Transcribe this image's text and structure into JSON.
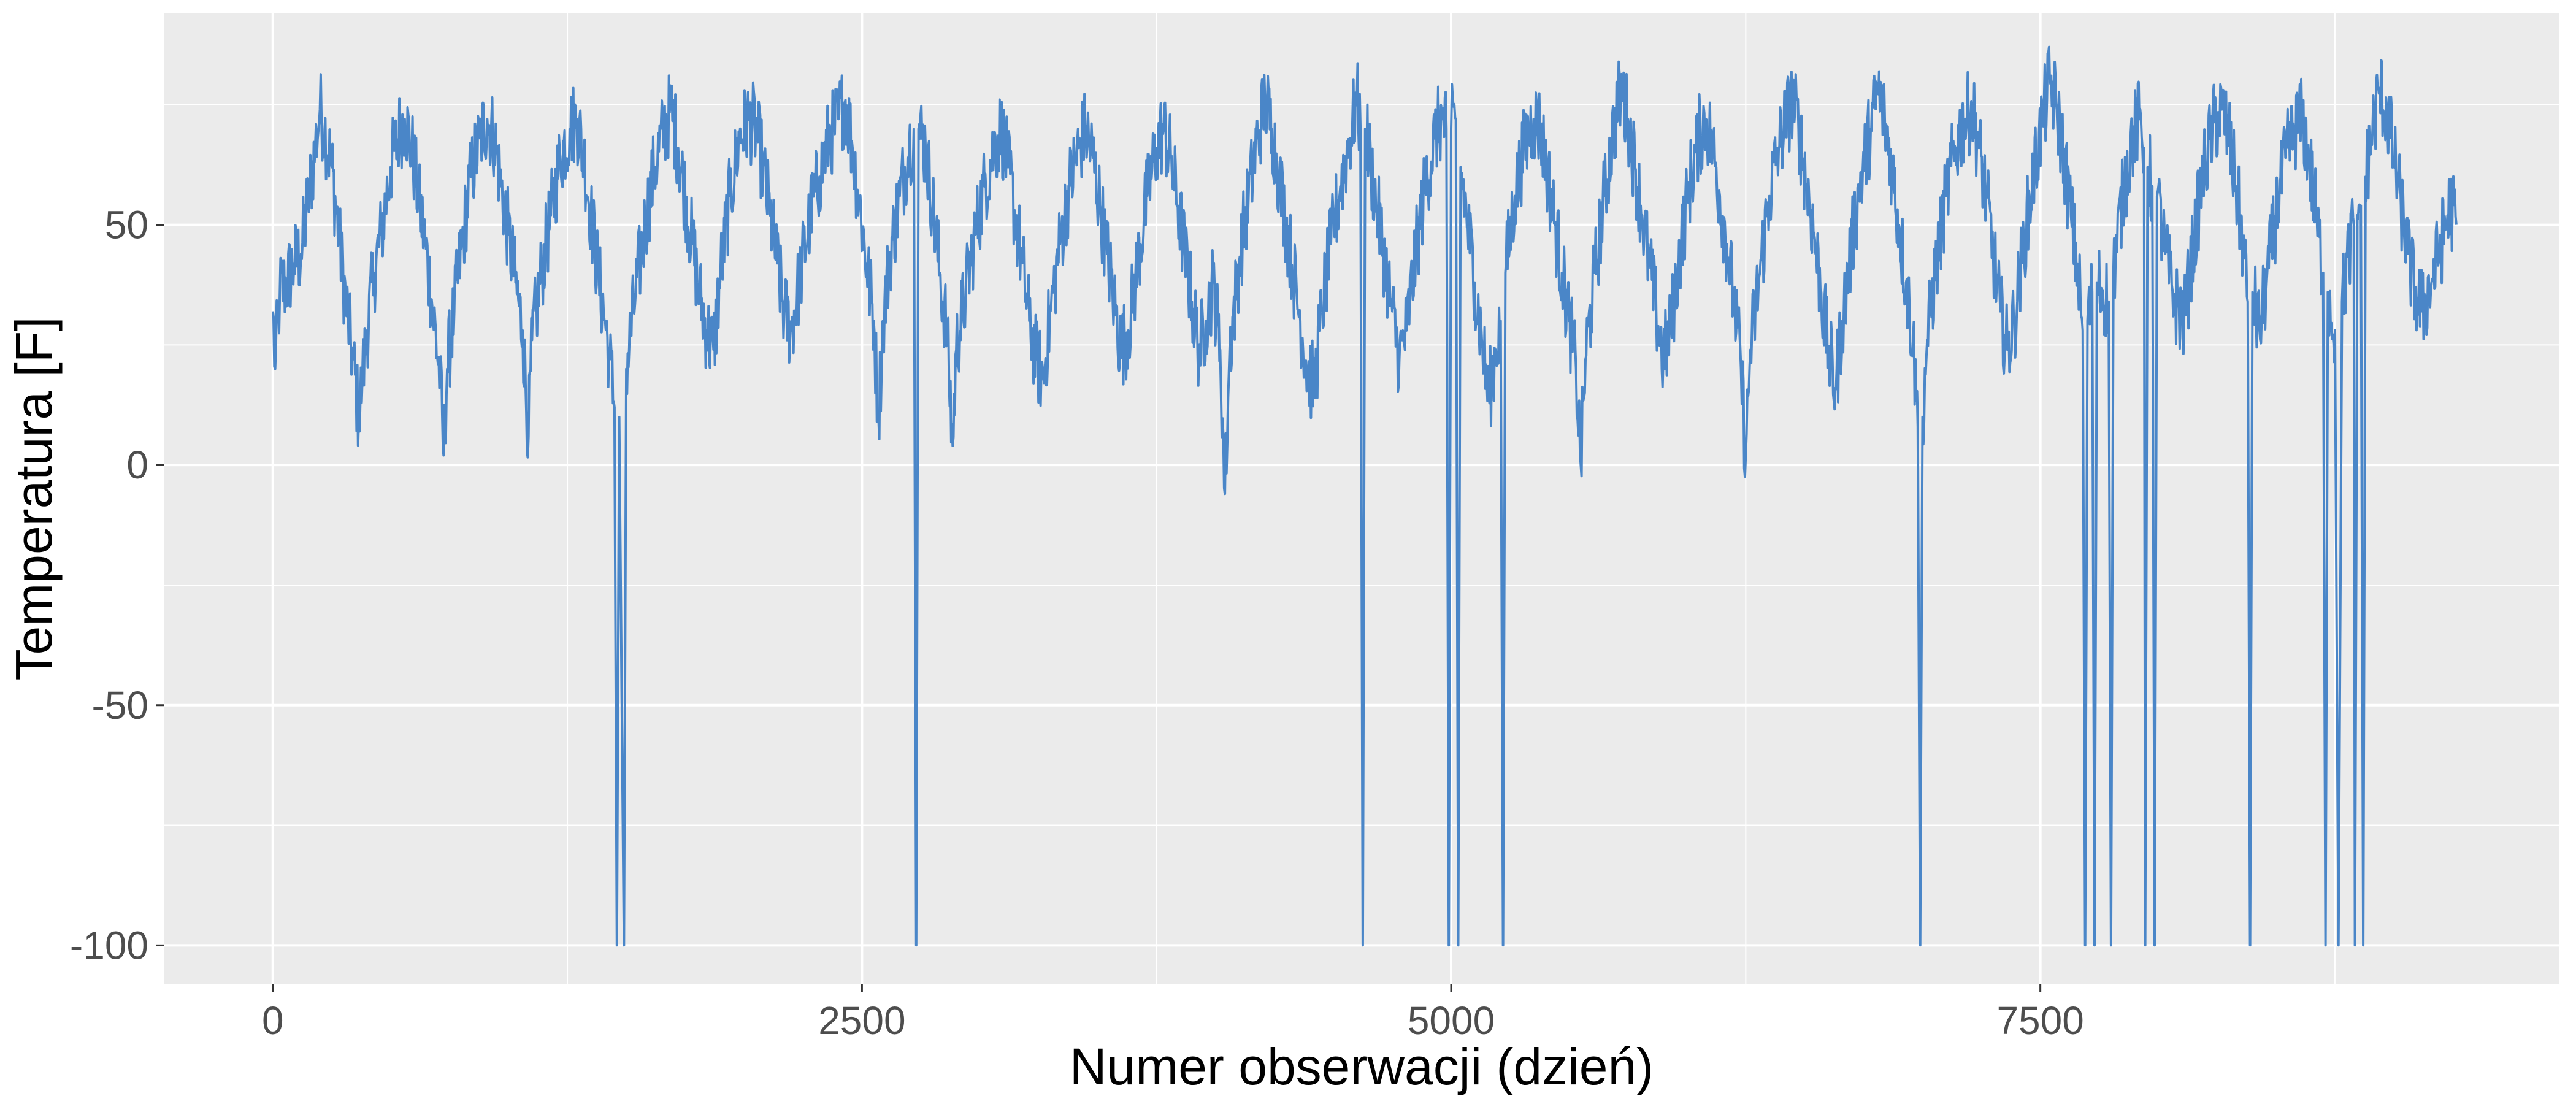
{
  "chart_data": {
    "type": "line",
    "title": "",
    "xlabel": "Numer obserwacji (dzień)",
    "ylabel": "Temperatura [F]",
    "xlim": [
      -460,
      9700
    ],
    "ylim": [
      -108,
      94
    ],
    "x_ticks": [
      0,
      2500,
      5000,
      7500
    ],
    "x_tick_labels": [
      "0",
      "2500",
      "5000",
      "7500"
    ],
    "x_minor_ticks": [
      1250,
      3750,
      6250,
      8750
    ],
    "y_ticks": [
      -100,
      -50,
      0,
      50
    ],
    "y_tick_labels": [
      "-100",
      "-50",
      "0",
      "50"
    ],
    "y_minor_ticks": [
      -75,
      -25,
      25,
      75
    ],
    "grid": true,
    "legend": "none",
    "colors": {
      "line": "#4a86c8",
      "panel": "#ebebeb",
      "grid": "#ffffff",
      "tick_text": "#4d4d4d"
    },
    "x_range": [
      0,
      9265
    ],
    "series": [
      {
        "values_note_points": [
          [
            0,
            32
          ],
          [
            10,
            20
          ],
          [
            30,
            36
          ],
          [
            60,
            38
          ],
          [
            90,
            42
          ],
          [
            120,
            44
          ],
          [
            150,
            55
          ],
          [
            180,
            66
          ],
          [
            200,
            74
          ],
          [
            220,
            70
          ],
          [
            250,
            62
          ],
          [
            280,
            48
          ],
          [
            310,
            34
          ],
          [
            340,
            22
          ],
          [
            365,
            10
          ],
          [
            380,
            18
          ],
          [
            400,
            28
          ],
          [
            430,
            40
          ],
          [
            460,
            48
          ],
          [
            500,
            62
          ],
          [
            540,
            70
          ],
          [
            560,
            72
          ],
          [
            590,
            66
          ],
          [
            620,
            55
          ],
          [
            650,
            45
          ],
          [
            680,
            32
          ],
          [
            710,
            18
          ],
          [
            725,
            2
          ],
          [
            740,
            20
          ],
          [
            770,
            32
          ],
          [
            800,
            45
          ],
          [
            840,
            60
          ],
          [
            880,
            68
          ],
          [
            910,
            72
          ],
          [
            940,
            68
          ],
          [
            970,
            58
          ],
          [
            1000,
            48
          ],
          [
            1030,
            38
          ],
          [
            1060,
            28
          ],
          [
            1085,
            6
          ],
          [
            1100,
            26
          ],
          [
            1140,
            40
          ],
          [
            1180,
            52
          ],
          [
            1220,
            64
          ],
          [
            1260,
            70
          ],
          [
            1290,
            72
          ],
          [
            1320,
            64
          ],
          [
            1350,
            52
          ],
          [
            1380,
            40
          ],
          [
            1410,
            30
          ],
          [
            1430,
            22
          ],
          [
            1450,
            12
          ],
          [
            1460,
            -100
          ],
          [
            1470,
            10
          ],
          [
            1490,
            -100
          ],
          [
            1500,
            20
          ],
          [
            1540,
            36
          ],
          [
            1580,
            50
          ],
          [
            1620,
            62
          ],
          [
            1660,
            70
          ],
          [
            1690,
            74
          ],
          [
            1720,
            66
          ],
          [
            1750,
            56
          ],
          [
            1780,
            46
          ],
          [
            1810,
            36
          ],
          [
            1840,
            28
          ],
          [
            1870,
            24
          ],
          [
            1900,
            40
          ],
          [
            1940,
            56
          ],
          [
            1980,
            68
          ],
          [
            2020,
            72
          ],
          [
            2050,
            70
          ],
          [
            2080,
            62
          ],
          [
            2110,
            52
          ],
          [
            2140,
            42
          ],
          [
            2170,
            32
          ],
          [
            2200,
            28
          ],
          [
            2240,
            40
          ],
          [
            2280,
            52
          ],
          [
            2320,
            60
          ],
          [
            2360,
            68
          ],
          [
            2400,
            72
          ],
          [
            2430,
            76
          ],
          [
            2460,
            66
          ],
          [
            2490,
            54
          ],
          [
            2520,
            42
          ],
          [
            2550,
            30
          ],
          [
            2570,
            10
          ],
          [
            2590,
            30
          ],
          [
            2620,
            44
          ],
          [
            2660,
            56
          ],
          [
            2700,
            66
          ],
          [
            2720,
            70
          ],
          [
            2730,
            -100
          ],
          [
            2740,
            70
          ],
          [
            2770,
            66
          ],
          [
            2800,
            54
          ],
          [
            2830,
            40
          ],
          [
            2860,
            28
          ],
          [
            2885,
            4
          ],
          [
            2900,
            24
          ],
          [
            2940,
            36
          ],
          [
            2980,
            48
          ],
          [
            3020,
            58
          ],
          [
            3060,
            66
          ],
          [
            3090,
            70
          ],
          [
            3120,
            62
          ],
          [
            3150,
            52
          ],
          [
            3180,
            42
          ],
          [
            3210,
            30
          ],
          [
            3240,
            22
          ],
          [
            3270,
            18
          ],
          [
            3300,
            32
          ],
          [
            3340,
            46
          ],
          [
            3380,
            58
          ],
          [
            3420,
            66
          ],
          [
            3450,
            70
          ],
          [
            3480,
            64
          ],
          [
            3510,
            54
          ],
          [
            3540,
            44
          ],
          [
            3570,
            34
          ],
          [
            3600,
            24
          ],
          [
            3630,
            28
          ],
          [
            3670,
            42
          ],
          [
            3710,
            56
          ],
          [
            3750,
            66
          ],
          [
            3780,
            70
          ],
          [
            3810,
            64
          ],
          [
            3840,
            54
          ],
          [
            3870,
            44
          ],
          [
            3900,
            34
          ],
          [
            3930,
            24
          ],
          [
            3960,
            30
          ],
          [
            3990,
            38
          ],
          [
            4020,
            24
          ],
          [
            4040,
            -6
          ],
          [
            4060,
            24
          ],
          [
            4100,
            42
          ],
          [
            4140,
            56
          ],
          [
            4180,
            68
          ],
          [
            4210,
            76
          ],
          [
            4240,
            70
          ],
          [
            4270,
            60
          ],
          [
            4300,
            50
          ],
          [
            4330,
            40
          ],
          [
            4360,
            30
          ],
          [
            4390,
            20
          ],
          [
            4420,
            16
          ],
          [
            4450,
            32
          ],
          [
            4490,
            46
          ],
          [
            4530,
            58
          ],
          [
            4570,
            68
          ],
          [
            4600,
            76
          ],
          [
            4615,
            70
          ],
          [
            4625,
            -100
          ],
          [
            4635,
            70
          ],
          [
            4660,
            62
          ],
          [
            4690,
            52
          ],
          [
            4720,
            42
          ],
          [
            4750,
            32
          ],
          [
            4780,
            22
          ],
          [
            4810,
            28
          ],
          [
            4850,
            44
          ],
          [
            4890,
            58
          ],
          [
            4930,
            68
          ],
          [
            4960,
            72
          ],
          [
            4980,
            70
          ],
          [
            4990,
            -100
          ],
          [
            5000,
            70
          ],
          [
            5020,
            72
          ],
          [
            5030,
            -100
          ],
          [
            5040,
            62
          ],
          [
            5070,
            50
          ],
          [
            5100,
            38
          ],
          [
            5130,
            26
          ],
          [
            5160,
            14
          ],
          [
            5190,
            24
          ],
          [
            5210,
            30
          ],
          [
            5220,
            -100
          ],
          [
            5230,
            40
          ],
          [
            5270,
            56
          ],
          [
            5310,
            66
          ],
          [
            5350,
            72
          ],
          [
            5380,
            70
          ],
          [
            5410,
            60
          ],
          [
            5440,
            50
          ],
          [
            5470,
            40
          ],
          [
            5500,
            30
          ],
          [
            5530,
            20
          ],
          [
            5550,
            0
          ],
          [
            5570,
            22
          ],
          [
            5610,
            40
          ],
          [
            5650,
            56
          ],
          [
            5690,
            70
          ],
          [
            5720,
            78
          ],
          [
            5750,
            72
          ],
          [
            5780,
            62
          ],
          [
            5810,
            52
          ],
          [
            5840,
            42
          ],
          [
            5870,
            32
          ],
          [
            5900,
            22
          ],
          [
            5930,
            28
          ],
          [
            5970,
            44
          ],
          [
            6010,
            58
          ],
          [
            6050,
            68
          ],
          [
            6080,
            72
          ],
          [
            6110,
            66
          ],
          [
            6140,
            56
          ],
          [
            6170,
            46
          ],
          [
            6200,
            34
          ],
          [
            6230,
            20
          ],
          [
            6250,
            2
          ],
          [
            6270,
            24
          ],
          [
            6310,
            40
          ],
          [
            6350,
            56
          ],
          [
            6390,
            66
          ],
          [
            6420,
            72
          ],
          [
            6450,
            76
          ],
          [
            6480,
            68
          ],
          [
            6510,
            58
          ],
          [
            6540,
            48
          ],
          [
            6570,
            36
          ],
          [
            6600,
            24
          ],
          [
            6630,
            16
          ],
          [
            6660,
            30
          ],
          [
            6700,
            46
          ],
          [
            6740,
            60
          ],
          [
            6780,
            70
          ],
          [
            6810,
            78
          ],
          [
            6840,
            72
          ],
          [
            6870,
            62
          ],
          [
            6900,
            50
          ],
          [
            6930,
            38
          ],
          [
            6960,
            26
          ],
          [
            6980,
            8
          ],
          [
            6990,
            -100
          ],
          [
            7000,
            10
          ],
          [
            7020,
            26
          ],
          [
            7060,
            42
          ],
          [
            7100,
            56
          ],
          [
            7140,
            66
          ],
          [
            7180,
            72
          ],
          [
            7210,
            74
          ],
          [
            7240,
            66
          ],
          [
            7270,
            56
          ],
          [
            7300,
            44
          ],
          [
            7330,
            32
          ],
          [
            7360,
            24
          ],
          [
            7390,
            30
          ],
          [
            7430,
            46
          ],
          [
            7470,
            60
          ],
          [
            7510,
            72
          ],
          [
            7540,
            80
          ],
          [
            7570,
            74
          ],
          [
            7600,
            64
          ],
          [
            7630,
            52
          ],
          [
            7660,
            40
          ],
          [
            7680,
            28
          ],
          [
            7690,
            -100
          ],
          [
            7700,
            30
          ],
          [
            7720,
            36
          ],
          [
            7730,
            -100
          ],
          [
            7740,
            38
          ],
          [
            7790,
            34
          ],
          [
            7800,
            -100
          ],
          [
            7810,
            40
          ],
          [
            7850,
            56
          ],
          [
            7890,
            68
          ],
          [
            7920,
            72
          ],
          [
            7940,
            66
          ],
          [
            7945,
            -100
          ],
          [
            7955,
            62
          ],
          [
            7975,
            58
          ],
          [
            7985,
            -100
          ],
          [
            7995,
            56
          ],
          [
            8030,
            44
          ],
          [
            8070,
            34
          ],
          [
            8110,
            30
          ],
          [
            8150,
            46
          ],
          [
            8190,
            60
          ],
          [
            8230,
            70
          ],
          [
            8270,
            74
          ],
          [
            8300,
            68
          ],
          [
            8330,
            58
          ],
          [
            8360,
            46
          ],
          [
            8380,
            34
          ],
          [
            8390,
            -100
          ],
          [
            8400,
            36
          ],
          [
            8430,
            28
          ],
          [
            8460,
            38
          ],
          [
            8500,
            52
          ],
          [
            8540,
            64
          ],
          [
            8580,
            70
          ],
          [
            8610,
            72
          ],
          [
            8640,
            64
          ],
          [
            8670,
            52
          ],
          [
            8700,
            40
          ],
          [
            8710,
            -100
          ],
          [
            8720,
            36
          ],
          [
            8750,
            28
          ],
          [
            8765,
            -100
          ],
          [
            8780,
            34
          ],
          [
            8810,
            44
          ],
          [
            8830,
            50
          ],
          [
            8835,
            -100
          ],
          [
            8845,
            52
          ],
          [
            8860,
            54
          ],
          [
            8870,
            -100
          ],
          [
            8880,
            60
          ],
          [
            8910,
            70
          ],
          [
            8940,
            78
          ],
          [
            8970,
            74
          ],
          [
            9000,
            64
          ],
          [
            9030,
            54
          ],
          [
            9060,
            44
          ],
          [
            9090,
            36
          ],
          [
            9120,
            32
          ],
          [
            9160,
            38
          ],
          [
            9200,
            46
          ],
          [
            9240,
            54
          ],
          [
            9265,
            50
          ]
        ]
      }
    ]
  }
}
